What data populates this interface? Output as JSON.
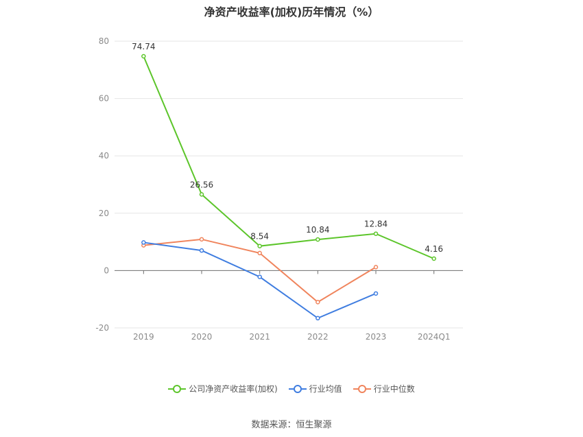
{
  "chart_data": {
    "type": "line",
    "title": "净资产收益率(加权)历年情况（%）",
    "categories": [
      "2019",
      "2020",
      "2021",
      "2022",
      "2023",
      "2024Q1"
    ],
    "ylim": [
      -20,
      80
    ],
    "yticks": [
      80,
      60,
      40,
      20,
      0,
      -20
    ],
    "grid": true,
    "legend_position": "bottom",
    "series": [
      {
        "name": "公司净资产收益率(加权)",
        "color": "#5cc52a",
        "values": [
          74.74,
          26.56,
          8.54,
          10.84,
          12.84,
          4.16
        ],
        "labels": [
          "74.74",
          "26.56",
          "8.54",
          "10.84",
          "12.84",
          "4.16"
        ]
      },
      {
        "name": "行业均值",
        "color": "#3f7de0",
        "values": [
          9.8,
          7.0,
          -2.2,
          -16.6,
          -8.0,
          null
        ]
      },
      {
        "name": "行业中位数",
        "color": "#f0845c",
        "values": [
          8.8,
          10.9,
          6.1,
          -11.0,
          1.2,
          null
        ]
      }
    ],
    "source": "数据来源：恒生聚源"
  }
}
